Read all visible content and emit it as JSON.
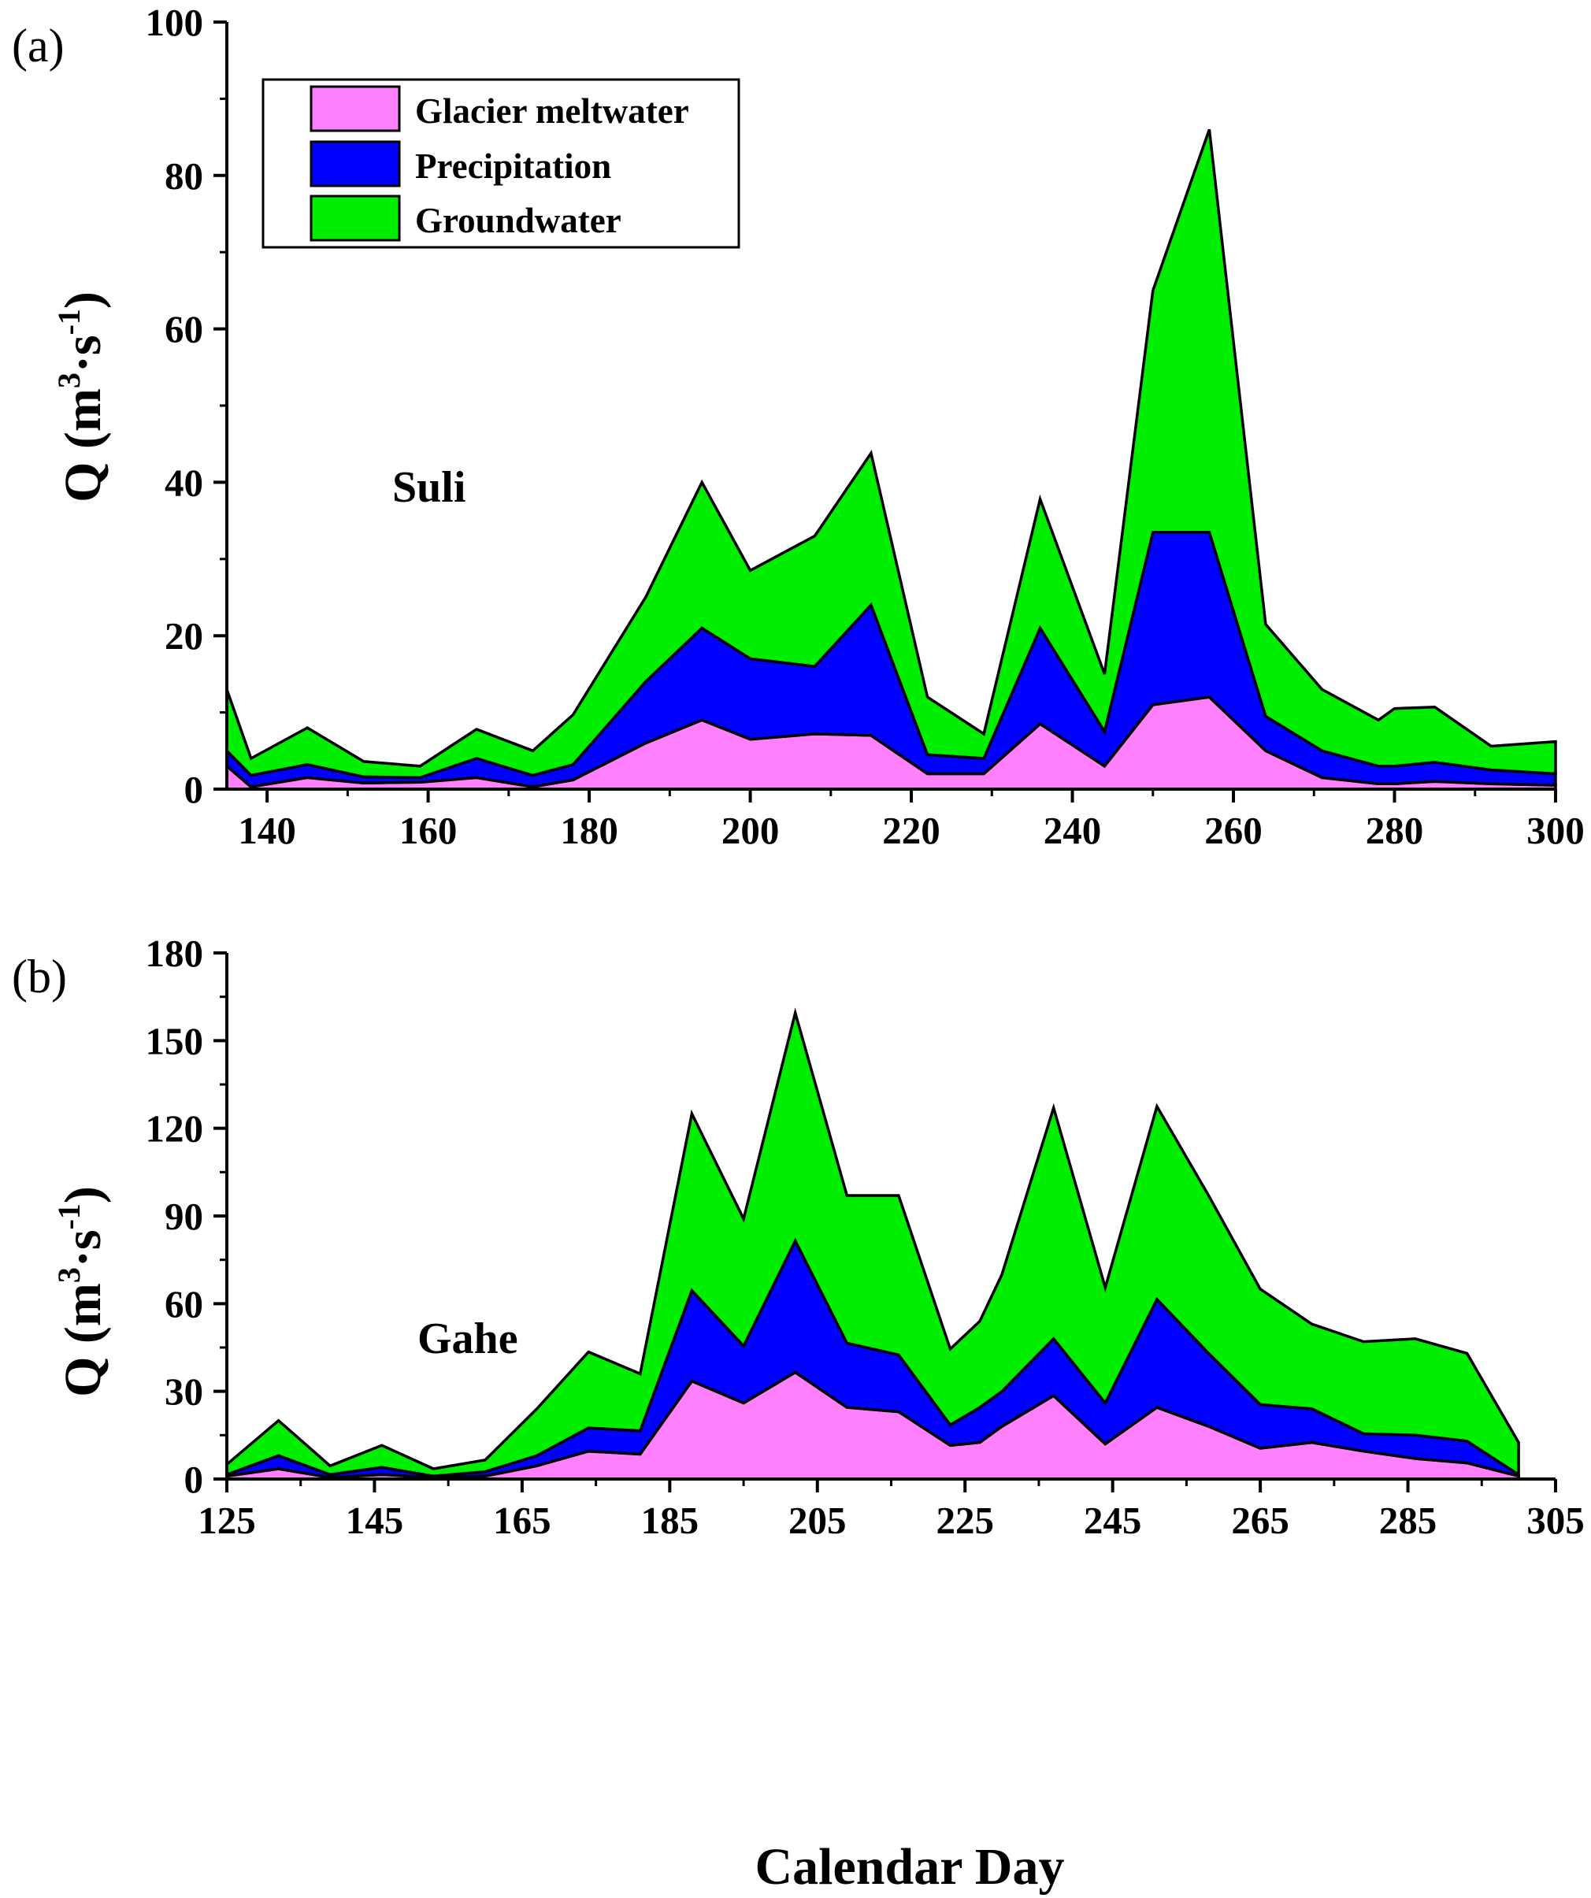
{
  "chart_data": [
    {
      "type": "area",
      "stacked": true,
      "panel_label": "(a)",
      "site": "Suli",
      "ylabel_prefix": "Q (m",
      "ylabel_sup1": "3",
      "ylabel_mid": "·s",
      "ylabel_sup2": "-1",
      "ylabel_suffix": ")",
      "xlim": [
        135,
        300
      ],
      "ylim": [
        0,
        100
      ],
      "xticks": [
        140,
        160,
        180,
        200,
        220,
        240,
        260,
        280,
        300
      ],
      "yticks": [
        0,
        20,
        40,
        60,
        80,
        100
      ],
      "legend": "top-left",
      "x": [
        135,
        138,
        145,
        152,
        159,
        166,
        173,
        178,
        187,
        194,
        200,
        208,
        215,
        222,
        229,
        236,
        244,
        250,
        257,
        264,
        271,
        278,
        280,
        285,
        292,
        300
      ],
      "series": [
        {
          "name": "Glacier meltwater",
          "color": "#ff80ff",
          "values": [
            3.0,
            0.3,
            1.5,
            0.8,
            0.9,
            1.5,
            0.3,
            1.2,
            6.0,
            9.0,
            6.5,
            7.2,
            7.0,
            2.0,
            2.0,
            8.5,
            3.0,
            11.0,
            12.0,
            5.0,
            1.5,
            0.7,
            0.7,
            1.0,
            0.7,
            0.5
          ]
        },
        {
          "name": "Precipitation",
          "color": "#0000ff",
          "values": [
            2.0,
            1.5,
            1.7,
            0.8,
            0.6,
            2.5,
            1.5,
            2.0,
            8.0,
            12.0,
            10.5,
            8.8,
            17.0,
            2.5,
            2.0,
            12.5,
            4.5,
            22.5,
            21.5,
            4.5,
            3.5,
            2.3,
            2.3,
            2.5,
            1.8,
            1.5
          ]
        },
        {
          "name": "Groundwater",
          "color": "#00ee00",
          "values": [
            8.0,
            2.2,
            4.8,
            2.0,
            1.5,
            3.8,
            3.2,
            6.5,
            11.0,
            19.0,
            11.5,
            17.0,
            19.8,
            7.5,
            3.2,
            16.8,
            7.5,
            31.5,
            52.5,
            12.0,
            8.0,
            6.0,
            7.5,
            7.2,
            3.1,
            4.2
          ]
        }
      ]
    },
    {
      "type": "area",
      "stacked": true,
      "panel_label": "(b)",
      "site": "Gahe",
      "ylabel_prefix": "Q (m",
      "ylabel_sup1": "3",
      "ylabel_mid": "·s",
      "ylabel_sup2": "-1",
      "ylabel_suffix": ")",
      "xlim": [
        125,
        305
      ],
      "ylim": [
        0,
        180
      ],
      "xticks": [
        125,
        145,
        165,
        185,
        205,
        225,
        245,
        265,
        285,
        305
      ],
      "yticks": [
        0,
        30,
        60,
        90,
        120,
        150,
        180
      ],
      "xlabel": "Calendar Day",
      "x": [
        125,
        132,
        139,
        146,
        153,
        160,
        167,
        174,
        181,
        188,
        195,
        202,
        209,
        216,
        223,
        227,
        230,
        237,
        244,
        251,
        258,
        265,
        272,
        279,
        286,
        293,
        300
      ],
      "series": [
        {
          "name": "Glacier meltwater",
          "color": "#ff80ff",
          "values": [
            1.0,
            3.5,
            0.5,
            1.5,
            0.5,
            1.0,
            4.5,
            9.5,
            8.5,
            33.5,
            26.0,
            36.5,
            24.5,
            23.0,
            11.5,
            12.5,
            18.0,
            28.5,
            12.0,
            24.5,
            18.0,
            10.5,
            12.5,
            9.5,
            7.0,
            5.5,
            1.0
          ]
        },
        {
          "name": "Precipitation",
          "color": "#0000ff",
          "values": [
            0.5,
            4.5,
            1.0,
            2.5,
            0.5,
            1.5,
            3.5,
            8.0,
            8.0,
            31.0,
            19.5,
            45.0,
            22.0,
            19.5,
            7.0,
            12.0,
            12.0,
            19.5,
            14.0,
            37.0,
            25.0,
            15.0,
            11.5,
            6.0,
            8.0,
            7.5,
            0.5
          ]
        },
        {
          "name": "Groundwater",
          "color": "#00ee00",
          "values": [
            3.5,
            12.0,
            3.0,
            7.5,
            2.5,
            4.0,
            16.0,
            26.0,
            19.5,
            60.5,
            43.5,
            78.0,
            50.5,
            54.5,
            26.0,
            29.5,
            40.0,
            79.0,
            39.5,
            66.0,
            54.0,
            39.5,
            29.0,
            31.5,
            33.0,
            30.0,
            11.0
          ]
        }
      ]
    }
  ]
}
